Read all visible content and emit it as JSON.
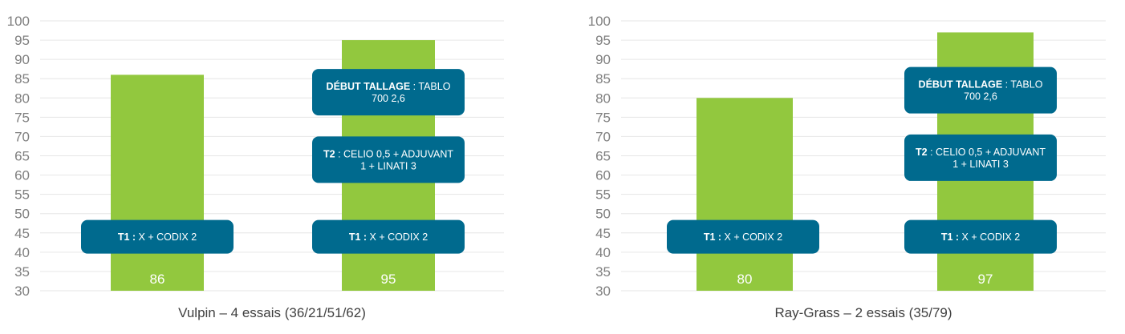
{
  "chart_data": [
    {
      "type": "bar",
      "xlabel": "Vulpin – 4 essais (36/21/51/62)",
      "ylim": [
        30,
        100
      ],
      "yticks": [
        "100",
        "95",
        "90",
        "85",
        "80",
        "75",
        "70",
        "65",
        "60",
        "55",
        "50",
        "45",
        "40",
        "35",
        "30"
      ],
      "categories": [
        "",
        ""
      ],
      "values": [
        86,
        95
      ],
      "data_labels": [
        "86",
        "95"
      ],
      "bar_color": "#92c83e",
      "annotation_color": "#006a8e",
      "annotations": [
        {
          "bar": 0,
          "y": 44,
          "lines": [
            [
              {
                "t": "T1 :",
                "b": true
              },
              {
                "t": " X + CODIX 2",
                "b": false
              }
            ]
          ]
        },
        {
          "bar": 1,
          "y": 44,
          "lines": [
            [
              {
                "t": "T1 :",
                "b": true
              },
              {
                "t": " X + CODIX 2",
                "b": false
              }
            ]
          ]
        },
        {
          "bar": 1,
          "y": 64,
          "lines": [
            [
              {
                "t": "T2",
                "b": true
              },
              {
                "t": " : CELIO 0,5 + ADJUVANT",
                "b": false
              }
            ],
            [
              {
                "t": "1 + LINATI 3",
                "b": false
              }
            ]
          ]
        },
        {
          "bar": 1,
          "y": 81.5,
          "lines": [
            [
              {
                "t": "DÉBUT TALLAGE",
                "b": true
              },
              {
                "t": " : TABLO",
                "b": false
              }
            ],
            [
              {
                "t": "700 2,6",
                "b": false
              }
            ]
          ]
        }
      ]
    },
    {
      "type": "bar",
      "xlabel": "Ray-Grass – 2 essais (35/79)",
      "ylim": [
        30,
        100
      ],
      "yticks": [
        "100",
        "95",
        "90",
        "85",
        "80",
        "75",
        "70",
        "65",
        "60",
        "55",
        "50",
        "45",
        "40",
        "35",
        "30"
      ],
      "categories": [
        "",
        ""
      ],
      "values": [
        80,
        97
      ],
      "data_labels": [
        "80",
        "97"
      ],
      "bar_color": "#92c83e",
      "annotation_color": "#006a8e",
      "annotations": [
        {
          "bar": 0,
          "y": 44,
          "lines": [
            [
              {
                "t": "T1 :",
                "b": true
              },
              {
                "t": " X + CODIX 2",
                "b": false
              }
            ]
          ]
        },
        {
          "bar": 1,
          "y": 44,
          "lines": [
            [
              {
                "t": "T1 :",
                "b": true
              },
              {
                "t": " X + CODIX 2",
                "b": false
              }
            ]
          ]
        },
        {
          "bar": 1,
          "y": 64.5,
          "lines": [
            [
              {
                "t": "T2",
                "b": true
              },
              {
                "t": " : CELIO 0,5 + ADJUVANT",
                "b": false
              }
            ],
            [
              {
                "t": "1 + LINATI 3",
                "b": false
              }
            ]
          ]
        },
        {
          "bar": 1,
          "y": 82,
          "lines": [
            [
              {
                "t": "DÉBUT TALLAGE",
                "b": true
              },
              {
                "t": " : TABLO",
                "b": false
              }
            ],
            [
              {
                "t": "700 2,6",
                "b": false
              }
            ]
          ]
        }
      ]
    }
  ]
}
